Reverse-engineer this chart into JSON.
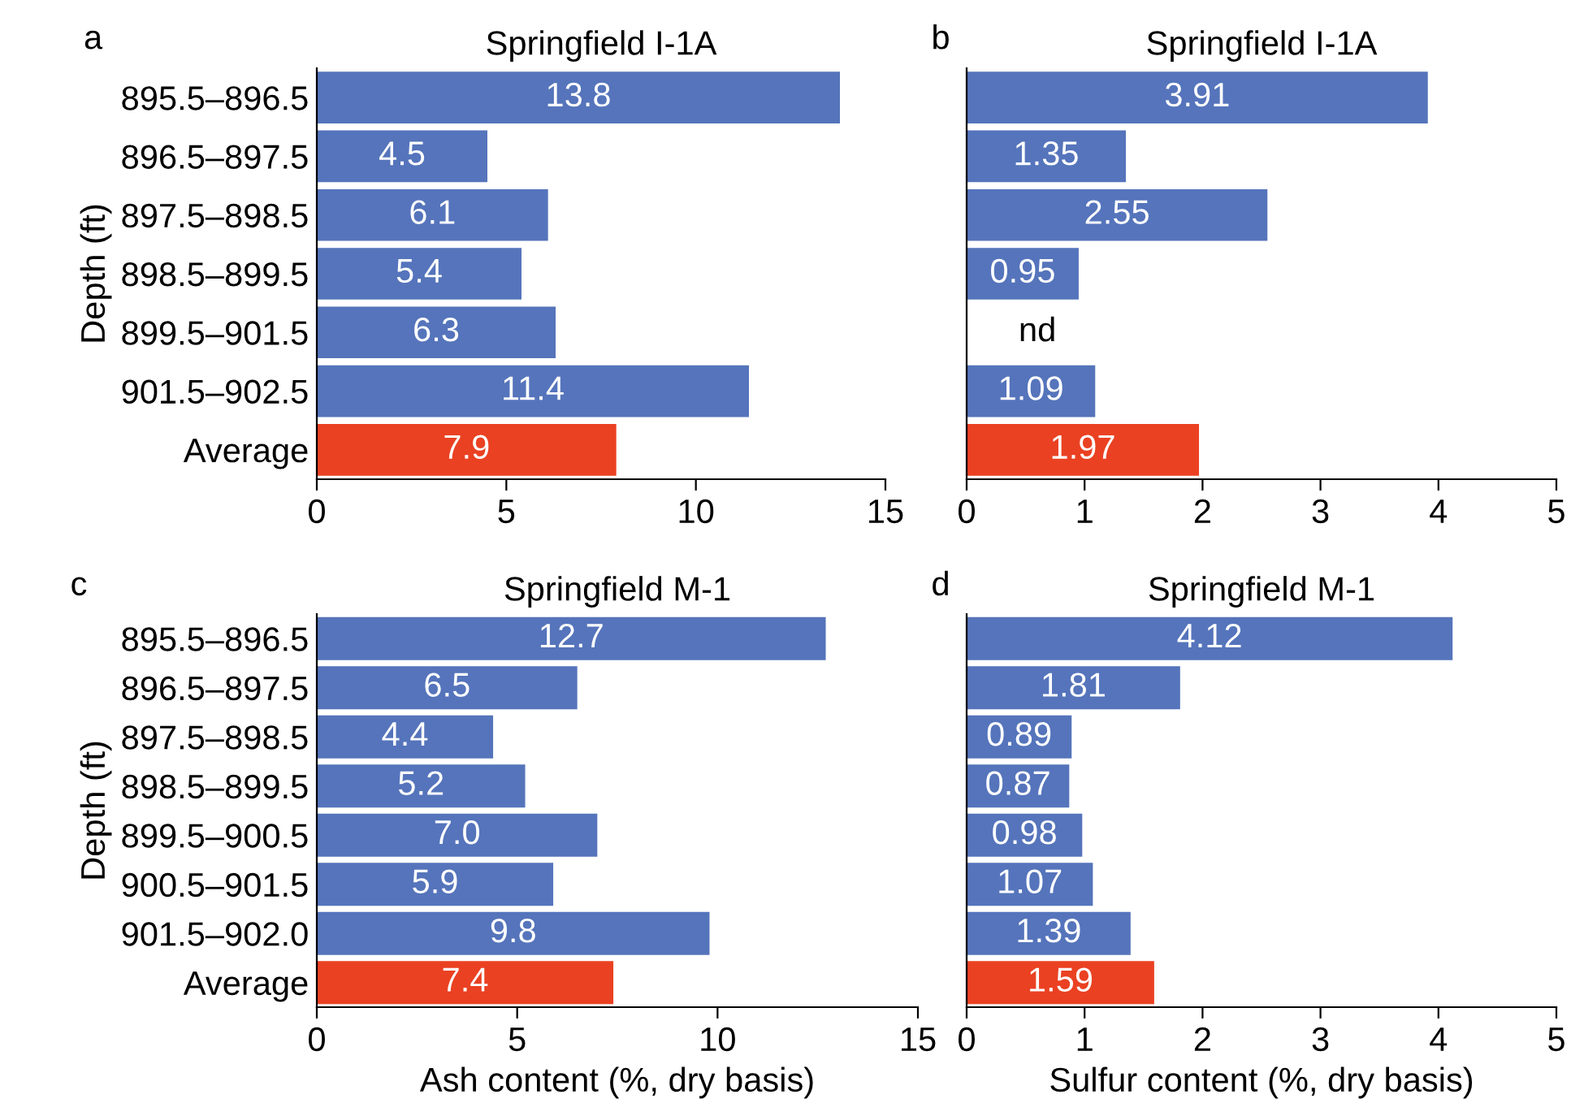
{
  "chart_data": [
    {
      "type": "bar",
      "orientation": "horizontal",
      "title": "Springfield I-1A",
      "ylabel": "Depth (ft)",
      "annotations": [
        "a"
      ],
      "categories": [
        "895.5–896.5",
        "896.5–897.5",
        "897.5–898.5",
        "898.5–899.5",
        "899.5–901.5",
        "901.5–902.5",
        "Average"
      ],
      "values": [
        13.8,
        4.5,
        6.1,
        5.4,
        6.3,
        11.4,
        7.9
      ],
      "value_labels": [
        "13.8",
        "4.5",
        "6.1",
        "5.4",
        "6.3",
        "11.4",
        "7.9"
      ],
      "colors": [
        "#5574bb",
        "#5574bb",
        "#5574bb",
        "#5574bb",
        "#5574bb",
        "#5574bb",
        "#ea4122"
      ],
      "xlim": [
        0,
        15
      ],
      "xticks": [
        0,
        5,
        10,
        15
      ],
      "grid": false,
      "legend": false
    },
    {
      "type": "bar",
      "orientation": "horizontal",
      "title": "Springfield I-1A",
      "annotations": [
        "b"
      ],
      "tick_labels": "x",
      "categories": [
        null,
        null,
        null,
        null,
        null,
        null,
        null
      ],
      "values": [
        3.91,
        1.35,
        2.55,
        0.95,
        null,
        1.09,
        1.97
      ],
      "value_labels": [
        "3.91",
        "1.35",
        "2.55",
        "0.95",
        "nd",
        "1.09",
        "1.97"
      ],
      "colors": [
        "#5574bb",
        "#5574bb",
        "#5574bb",
        "#5574bb",
        "#5574bb",
        "#5574bb",
        "#ea4122"
      ],
      "xlim": [
        0,
        5
      ],
      "xticks": [
        0,
        1,
        2,
        3,
        4,
        5
      ],
      "grid": false,
      "legend": false
    },
    {
      "type": "bar",
      "orientation": "horizontal",
      "title": "Springfield M-1",
      "ylabel": "Depth (ft)",
      "xlabel": "Ash content (%, dry basis)",
      "annotations": [
        "c"
      ],
      "categories": [
        "895.5–896.5",
        "896.5–897.5",
        "897.5–898.5",
        "898.5–899.5",
        "899.5–900.5",
        "900.5–901.5",
        "901.5–902.0",
        "Average"
      ],
      "values": [
        12.7,
        6.5,
        4.4,
        5.2,
        7.0,
        5.9,
        9.8,
        7.4
      ],
      "value_labels": [
        "12.7",
        "6.5",
        "4.4",
        "5.2",
        "7.0",
        "5.9",
        "9.8",
        "7.4"
      ],
      "colors": [
        "#5574bb",
        "#5574bb",
        "#5574bb",
        "#5574bb",
        "#5574bb",
        "#5574bb",
        "#5574bb",
        "#ea4122"
      ],
      "xlim": [
        0,
        15
      ],
      "xticks": [
        0,
        5,
        10,
        15
      ],
      "grid": false,
      "legend": false
    },
    {
      "type": "bar",
      "orientation": "horizontal",
      "title": "Springfield M-1",
      "xlabel": "Sulfur content (%, dry basis)",
      "annotations": [
        "d"
      ],
      "tick_labels": "x",
      "categories": [
        null,
        null,
        null,
        null,
        null,
        null,
        null,
        null
      ],
      "values": [
        4.12,
        1.81,
        0.89,
        0.87,
        0.98,
        1.07,
        1.39,
        1.59
      ],
      "value_labels": [
        "4.12",
        "1.81",
        "0.89",
        "0.87",
        "0.98",
        "1.07",
        "1.39",
        "1.59"
      ],
      "colors": [
        "#5574bb",
        "#5574bb",
        "#5574bb",
        "#5574bb",
        "#5574bb",
        "#5574bb",
        "#5574bb",
        "#ea4122"
      ],
      "xlim": [
        0,
        5
      ],
      "xticks": [
        0,
        1,
        2,
        3,
        4,
        5
      ],
      "grid": false,
      "legend": false
    }
  ]
}
